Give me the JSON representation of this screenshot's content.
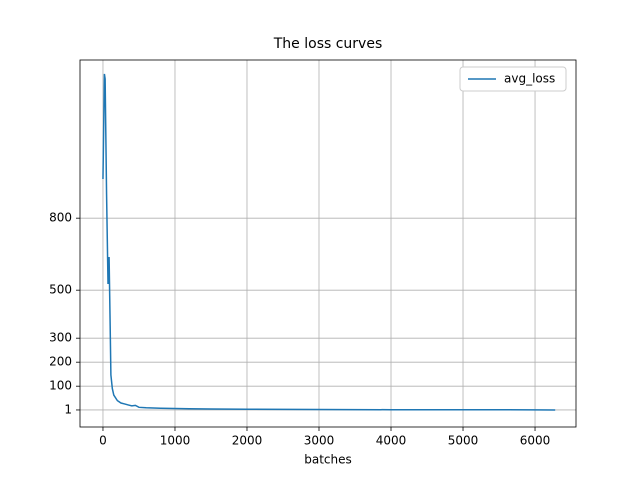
{
  "chart_data": {
    "type": "line",
    "title": "The loss curves",
    "x_label": "batches",
    "x": [
      0,
      20,
      30,
      50,
      70,
      85,
      100,
      110,
      130,
      150,
      200,
      250,
      300,
      350,
      400,
      450,
      500,
      600,
      800,
      1000,
      1200,
      1500,
      2000,
      3000,
      4000,
      5000,
      6000,
      6280
    ],
    "series": [
      {
        "name": "avg_loss",
        "color": "#1f77b4",
        "values": [
          963,
          1401,
          1380,
          900,
          526,
          638,
          350,
          147,
          90,
          63,
          40,
          30,
          26,
          22,
          18,
          20,
          12,
          10,
          8,
          7,
          6,
          5,
          4,
          3,
          2,
          2,
          1.5,
          1
        ]
      }
    ],
    "xlim": [
      -319,
      6569
    ],
    "ylim": [
      -70,
      1459
    ],
    "xticks": [
      0,
      1000,
      2000,
      3000,
      4000,
      5000,
      6000
    ],
    "yticks": [
      1,
      100,
      200,
      300,
      500,
      800
    ],
    "grid": true,
    "legend": "upper right"
  }
}
